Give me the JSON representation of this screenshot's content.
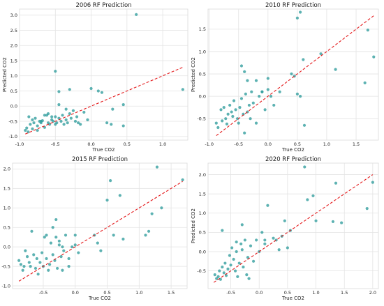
{
  "figure": {
    "background": "#ffffff",
    "grid": true
  },
  "colors": {
    "points": "#2f9c9c",
    "fit_line": "#e41a1c",
    "grid": "#e3e3e3"
  },
  "chart_data": [
    {
      "type": "scatter",
      "title": "2006 RF Prediction",
      "xlabel": "True CO2",
      "ylabel": "Predicted CO2",
      "xlim": [
        -1.0,
        1.35
      ],
      "ylim": [
        -1.12,
        3.2
      ],
      "xticks": [
        "-1.0",
        "-0.5",
        "0.0",
        "0.5",
        "1.0"
      ],
      "xtick_values": [
        -1.0,
        -0.5,
        0.0,
        0.5,
        1.0
      ],
      "yticks": [
        "-1.0",
        "-0.5",
        "0.0",
        "0.5",
        "1.0",
        "1.5",
        "2.0",
        "2.5",
        "3.0"
      ],
      "ytick_values": [
        -1.0,
        -0.5,
        0.0,
        0.5,
        1.0,
        1.5,
        2.0,
        2.5,
        3.0
      ],
      "fit_line": {
        "style": "dashed",
        "x": [
          -0.92,
          1.28
        ],
        "y": [
          -0.92,
          1.28
        ]
      },
      "points": {
        "x": [
          -0.92,
          -0.9,
          -0.88,
          -0.85,
          -0.87,
          -0.82,
          -0.8,
          -0.78,
          -0.75,
          -0.72,
          -0.7,
          -0.68,
          -0.65,
          -0.62,
          -0.6,
          -0.58,
          -0.55,
          -0.53,
          -0.5,
          -0.5,
          -0.48,
          -0.45,
          -0.42,
          -0.4,
          -0.38,
          -0.35,
          -0.33,
          -0.3,
          -0.28,
          -0.25,
          -0.22,
          -0.2,
          -0.18,
          -0.15,
          -0.1,
          -0.05,
          -0.82,
          -0.75,
          -0.7,
          -0.65,
          -0.6,
          -0.55,
          -0.45,
          -0.35,
          -0.5,
          -0.45,
          -0.3,
          0.0,
          0.1,
          0.15,
          0.45,
          0.45,
          0.63,
          1.28,
          0.28,
          0.22,
          0.3
        ],
        "y": [
          -0.8,
          -0.72,
          -0.85,
          -0.6,
          -0.35,
          -0.45,
          -0.55,
          -0.4,
          -0.65,
          -0.5,
          -0.55,
          -0.48,
          -0.7,
          -0.3,
          -0.55,
          -0.6,
          -0.45,
          -0.5,
          -0.6,
          -0.35,
          -0.55,
          -0.4,
          -0.5,
          -0.3,
          -0.6,
          -0.45,
          -0.55,
          -0.25,
          -0.4,
          -0.15,
          -0.5,
          -0.35,
          -0.55,
          -0.6,
          -0.2,
          -0.45,
          -0.75,
          -0.8,
          -0.5,
          -0.3,
          -0.25,
          -0.35,
          0.05,
          -0.1,
          1.15,
          0.48,
          0.55,
          0.58,
          0.5,
          0.45,
          0.05,
          -0.65,
          3.02,
          0.55,
          -0.6,
          -0.55,
          -0.1
        ]
      }
    },
    {
      "type": "scatter",
      "title": "2010 RF Prediction",
      "xlabel": "True CO2",
      "ylabel": "Predicted CO2",
      "xlim": [
        -1.02,
        1.88
      ],
      "ylim": [
        -0.98,
        1.95
      ],
      "xticks": [
        "-1.0",
        "-0.5",
        "0.0",
        "0.5",
        "1.0",
        "1.5"
      ],
      "xtick_values": [
        -1.0,
        -0.5,
        0.0,
        0.5,
        1.0,
        1.5
      ],
      "yticks": [
        "-0.5",
        "0.0",
        "0.5",
        "1.0",
        "1.5"
      ],
      "ytick_values": [
        -0.5,
        0.0,
        0.5,
        1.0,
        1.5
      ],
      "fit_line": {
        "style": "dashed",
        "x": [
          -0.88,
          1.8
        ],
        "y": [
          -0.88,
          1.8
        ]
      },
      "points": {
        "x": [
          -0.88,
          -0.85,
          -0.8,
          -0.78,
          -0.75,
          -0.72,
          -0.7,
          -0.68,
          -0.65,
          -0.62,
          -0.6,
          -0.58,
          -0.55,
          -0.52,
          -0.5,
          -0.48,
          -0.45,
          -0.42,
          -0.4,
          -0.38,
          -0.35,
          -0.32,
          -0.3,
          -0.28,
          -0.25,
          -0.2,
          -0.15,
          -0.1,
          -0.05,
          0.0,
          0.05,
          0.1,
          0.2,
          -0.45,
          -0.4,
          -0.35,
          -0.2,
          -0.1,
          0.0,
          0.4,
          0.45,
          0.5,
          0.55,
          0.6,
          0.62,
          0.5,
          0.55,
          0.9,
          1.15,
          1.65,
          1.7,
          1.8
        ],
        "y": [
          -0.6,
          -0.7,
          -0.3,
          -0.55,
          -0.25,
          -0.5,
          -0.62,
          -0.4,
          -0.2,
          -0.35,
          -0.45,
          -0.1,
          -0.3,
          -0.5,
          -0.6,
          -0.25,
          -0.05,
          -0.4,
          -0.82,
          0.05,
          -0.35,
          -0.2,
          -0.5,
          0.1,
          -0.15,
          -0.6,
          0.0,
          0.1,
          -0.3,
          0.15,
          0.0,
          -0.2,
          0.1,
          0.68,
          0.55,
          0.35,
          0.35,
          0.1,
          0.4,
          0.5,
          0.45,
          1.75,
          1.88,
          0.82,
          -0.65,
          0.05,
          0.0,
          0.95,
          0.6,
          0.3,
          1.48,
          0.88
        ]
      }
    },
    {
      "type": "scatter",
      "title": "2015 RF Prediction",
      "xlabel": "True CO2",
      "ylabel": "Predicted CO2",
      "xlim": [
        -0.98,
        1.75
      ],
      "ylim": [
        -1.07,
        2.15
      ],
      "xticks": [
        "-0.5",
        "0.0",
        "0.5",
        "1.0",
        "1.5"
      ],
      "xtick_values": [
        -0.5,
        0.0,
        0.5,
        1.0,
        1.5
      ],
      "yticks": [
        "-1.0",
        "-0.5",
        "0.0",
        "0.5",
        "1.0",
        "1.5",
        "2.0"
      ],
      "ytick_values": [
        -1.0,
        -0.5,
        0.0,
        0.5,
        1.0,
        1.5,
        2.0
      ],
      "fit_line": {
        "style": "dashed",
        "x": [
          -0.88,
          1.68
        ],
        "y": [
          -0.88,
          1.68
        ]
      },
      "points": {
        "x": [
          -0.88,
          -0.85,
          -0.82,
          -0.8,
          -0.78,
          -0.75,
          -0.72,
          -0.7,
          -0.68,
          -0.65,
          -0.62,
          -0.6,
          -0.58,
          -0.55,
          -0.52,
          -0.5,
          -0.48,
          -0.45,
          -0.42,
          -0.4,
          -0.38,
          -0.35,
          -0.32,
          -0.3,
          -0.28,
          -0.25,
          -0.22,
          -0.2,
          -0.18,
          -0.15,
          -0.1,
          -0.05,
          0.0,
          0.05,
          -0.45,
          -0.35,
          -0.3,
          -0.25,
          -0.2,
          -0.1,
          0.0,
          0.3,
          0.35,
          0.4,
          0.5,
          0.55,
          0.6,
          0.7,
          0.75,
          1.1,
          1.15,
          1.2,
          1.28,
          1.35,
          1.68
        ],
        "y": [
          -0.35,
          -0.45,
          -0.6,
          -0.5,
          -0.1,
          -0.25,
          -0.4,
          -0.5,
          0.4,
          -0.2,
          -0.55,
          -0.3,
          -0.7,
          -0.4,
          -0.15,
          -0.5,
          0.25,
          -0.3,
          -0.6,
          -0.45,
          0.1,
          -0.2,
          -0.35,
          0.7,
          -0.55,
          0.05,
          -0.25,
          -0.6,
          -0.1,
          0.3,
          -0.3,
          0.0,
          0.05,
          -0.15,
          0.3,
          0.5,
          0.25,
          0.15,
          0.0,
          -0.5,
          0.3,
          0.3,
          0.1,
          -0.1,
          1.2,
          1.7,
          0.3,
          1.32,
          0.2,
          0.3,
          0.4,
          0.85,
          2.05,
          1.0,
          1.72
        ]
      }
    },
    {
      "type": "scatter",
      "title": "2020 RF Prediction",
      "xlabel": "True CO2",
      "ylabel": "Predicted CO2",
      "xlim": [
        -0.9,
        2.1
      ],
      "ylim": [
        -0.96,
        2.3
      ],
      "xticks": [
        "-0.5",
        "0.0",
        "0.5",
        "1.0",
        "1.5",
        "2.0"
      ],
      "xtick_values": [
        -0.5,
        0.0,
        0.5,
        1.0,
        1.5,
        2.0
      ],
      "yticks": [
        "-0.5",
        "0.0",
        "0.5",
        "1.0",
        "1.5",
        "2.0"
      ],
      "ytick_values": [
        -0.5,
        0.0,
        0.5,
        1.0,
        1.5,
        2.0
      ],
      "fit_line": {
        "style": "dashed",
        "x": [
          -0.8,
          2.0
        ],
        "y": [
          -0.8,
          2.0
        ]
      },
      "points": {
        "x": [
          -0.78,
          -0.75,
          -0.72,
          -0.7,
          -0.68,
          -0.65,
          -0.62,
          -0.6,
          -0.58,
          -0.55,
          -0.52,
          -0.5,
          -0.48,
          -0.45,
          -0.42,
          -0.4,
          -0.38,
          -0.35,
          -0.32,
          -0.3,
          -0.28,
          -0.25,
          -0.22,
          -0.2,
          -0.18,
          -0.15,
          -0.1,
          -0.05,
          0.0,
          0.05,
          0.1,
          0.15,
          0.25,
          0.3,
          0.35,
          0.4,
          0.5,
          0.55,
          -0.65,
          -0.4,
          -0.3,
          0.1,
          0.45,
          0.8,
          0.85,
          0.95,
          1.0,
          1.3,
          1.35,
          1.45,
          1.9,
          2.0
        ],
        "y": [
          -0.6,
          -0.7,
          -0.65,
          -0.5,
          -0.72,
          -0.4,
          -0.55,
          -0.3,
          -0.62,
          -0.45,
          -0.1,
          -0.35,
          0.1,
          -0.2,
          -0.5,
          0.0,
          -0.65,
          -0.3,
          0.2,
          0.05,
          -0.4,
          0.3,
          -0.6,
          -0.15,
          -0.7,
          0.15,
          -0.25,
          0.3,
          0.0,
          0.5,
          0.2,
          1.2,
          0.35,
          0.3,
          0.05,
          0.4,
          0.1,
          0.55,
          0.55,
          0.25,
          0.7,
          0.3,
          0.8,
          2.2,
          1.35,
          1.45,
          0.8,
          0.78,
          1.78,
          0.75,
          1.12,
          1.8
        ]
      }
    }
  ]
}
